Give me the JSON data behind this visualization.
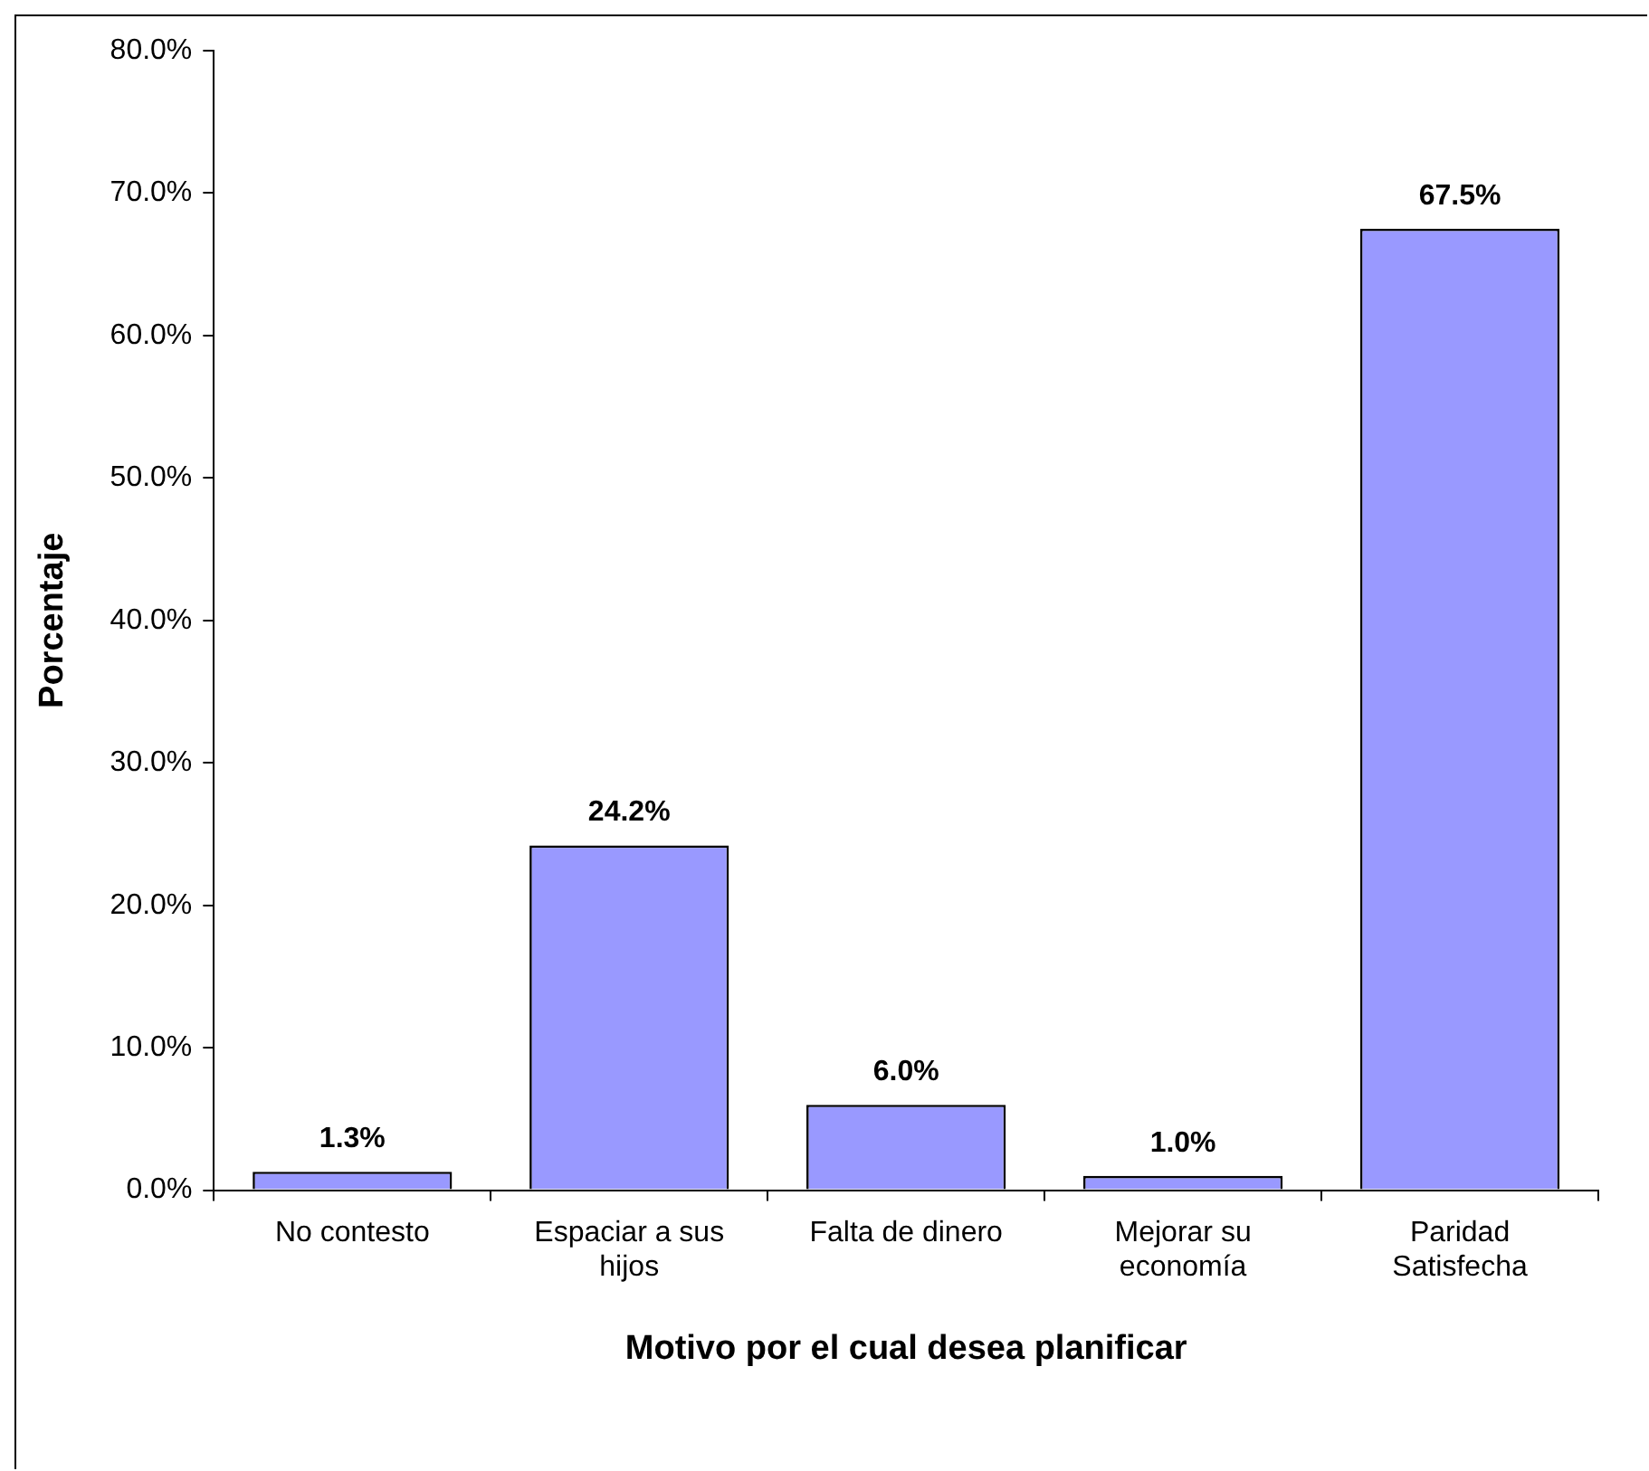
{
  "chart_data": {
    "type": "bar",
    "xlabel": "Motivo por el cual desea planificar",
    "ylabel": "Porcentaje",
    "categories": [
      "No contesto",
      "Espaciar a sus hijos",
      "Falta de dinero",
      "Mejorar su economía",
      "Paridad Satisfecha"
    ],
    "values": [
      1.3,
      24.2,
      6.0,
      1.0,
      67.5
    ],
    "value_labels": [
      "1.3%",
      "24.2%",
      "6.0%",
      "1.0%",
      "67.5%"
    ],
    "color": "#9999ff",
    "ylim": [
      0,
      80
    ],
    "yticks": [
      {
        "value": 0,
        "label": "0.0%"
      },
      {
        "value": 10,
        "label": "10.0%"
      },
      {
        "value": 20,
        "label": "20.0%"
      },
      {
        "value": 30,
        "label": "30.0%"
      },
      {
        "value": 40,
        "label": "40.0%"
      },
      {
        "value": 50,
        "label": "50.0%"
      },
      {
        "value": 60,
        "label": "60.0%"
      },
      {
        "value": 70,
        "label": "70.0%"
      },
      {
        "value": 80,
        "label": "80.0%"
      }
    ],
    "grid": false,
    "legend": false
  }
}
